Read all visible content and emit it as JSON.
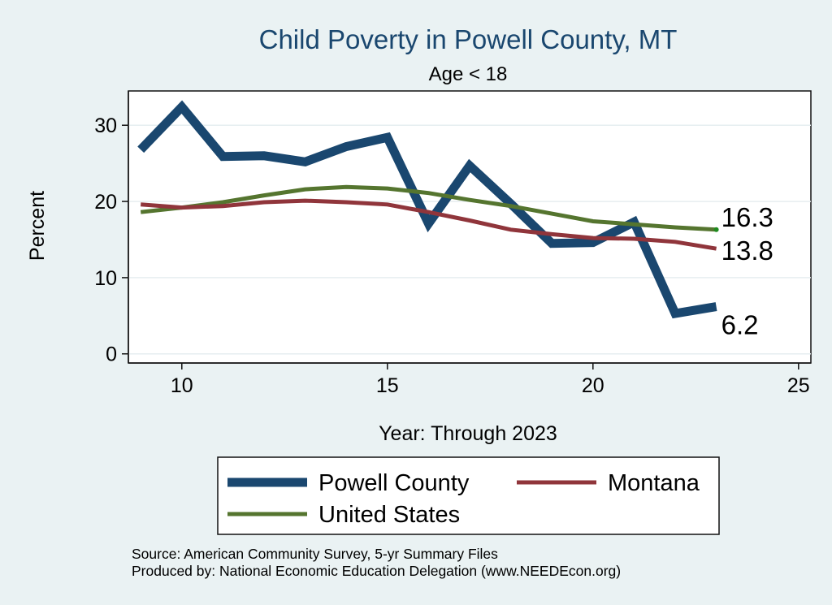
{
  "chart_data": {
    "type": "line",
    "title": "Child Poverty in Powell County, MT",
    "subtitle": "Age < 18",
    "xlabel": "Year: Through 2023",
    "ylabel": "Percent",
    "xlim": [
      8.7,
      25.3
    ],
    "ylim": [
      -1.2,
      34.5
    ],
    "xticks": [
      10,
      15,
      20,
      25
    ],
    "yticks": [
      0,
      10,
      20,
      30
    ],
    "grid": true,
    "legend_position": "bottom",
    "x": [
      9,
      10,
      11,
      12,
      13,
      14,
      15,
      16,
      17,
      18,
      19,
      20,
      21,
      22,
      23
    ],
    "series": [
      {
        "name": "Powell County",
        "color": "#1a476f",
        "values": [
          26.8,
          32.4,
          25.9,
          26.0,
          25.2,
          27.2,
          28.4,
          17.1,
          24.7,
          19.7,
          14.5,
          14.6,
          17.3,
          5.3,
          6.2
        ],
        "end_label": "6.2"
      },
      {
        "name": "Montana",
        "color": "#90353b",
        "values": [
          19.6,
          19.2,
          19.4,
          19.9,
          20.1,
          19.9,
          19.6,
          18.6,
          17.5,
          16.3,
          15.7,
          15.2,
          15.1,
          14.7,
          13.8
        ],
        "end_label": "13.8"
      },
      {
        "name": "United States",
        "color": "#55752f",
        "values": [
          18.6,
          19.2,
          19.9,
          20.8,
          21.6,
          21.9,
          21.7,
          21.1,
          20.2,
          19.4,
          18.4,
          17.4,
          17.0,
          16.6,
          16.3
        ],
        "end_label": "16.3"
      }
    ],
    "source_lines": [
      "Source: American Community Survey, 5-yr Summary Files",
      "Produced by: National Economic Education Delegation (www.NEEDEcon.org)"
    ]
  }
}
